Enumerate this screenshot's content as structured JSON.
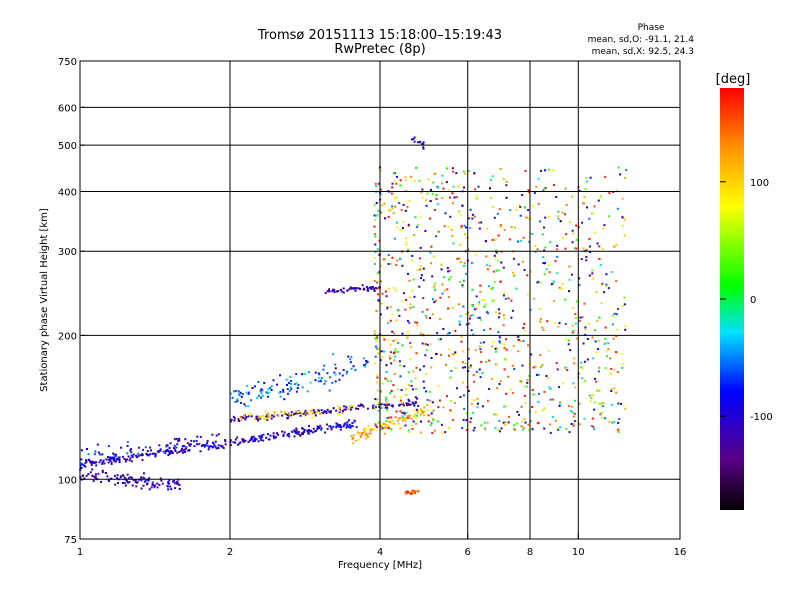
{
  "chart_data": {
    "type": "scatter",
    "title": "Tromsø 20151113 15:18:00–15:19:43",
    "subtitle": "RwPretec (8p)",
    "xlabel": "Frequency [MHz]",
    "ylabel": "Stationary phase Virtual Height [km]",
    "x_scale": "log",
    "y_scale": "log",
    "xlim": [
      1,
      16
    ],
    "ylim": [
      75,
      750
    ],
    "grid": true,
    "x_ticks": [
      1,
      2,
      4,
      6,
      8,
      10,
      16
    ],
    "y_ticks": [
      75,
      100,
      200,
      300,
      400,
      500,
      600,
      750
    ],
    "phase_stats": {
      "heading": "Phase",
      "o_line": "mean, sd,O: -91.1, 21.4",
      "x_line": "mean, sd,X:  92.5, 24.3"
    },
    "colorbar": {
      "label": "[deg]",
      "range": [
        -180,
        180
      ],
      "ticks": [
        100,
        0,
        -100
      ],
      "colormap": "rainbow (black→violet→blue→cyan→green→yellow→orange→red)"
    },
    "traces": [
      {
        "freq": [
          1.0,
          3.6
        ],
        "height": [
          107,
          131
        ],
        "phase": -105,
        "count": 300,
        "spread": 0.01
      },
      {
        "freq": [
          1.0,
          1.6
        ],
        "height": [
          102,
          97
        ],
        "phase": -115,
        "count": 110,
        "spread": 0.015
      },
      {
        "freq": [
          1.0,
          1.9
        ],
        "height": [
          112,
          122
        ],
        "phase": -95,
        "count": 70,
        "spread": 0.02
      },
      {
        "freq": [
          3.5,
          5.0
        ],
        "height": [
          122,
          140
        ],
        "phase": 110,
        "count": 90,
        "spread": 0.015
      },
      {
        "freq": [
          2.0,
          4.8
        ],
        "height": [
          133,
          145
        ],
        "phase": -120,
        "count": 140,
        "spread": 0.008
      },
      {
        "freq": [
          2.1,
          3.6
        ],
        "height": [
          135,
          141
        ],
        "phase": 100,
        "count": 50,
        "spread": 0.01
      },
      {
        "freq": [
          2.0,
          3.8
        ],
        "height": [
          145,
          175
        ],
        "phase": -60,
        "count": 120,
        "spread": 0.03
      },
      {
        "freq": [
          3.1,
          4.0
        ],
        "height": [
          247,
          252
        ],
        "phase": -115,
        "count": 50,
        "spread": 0.006
      },
      {
        "freq": [
          4.5,
          4.8
        ],
        "height": [
          94,
          94
        ],
        "phase": 160,
        "count": 22,
        "spread": 0.004
      },
      {
        "freq": [
          4.6,
          4.9
        ],
        "height": [
          520,
          500
        ],
        "phase": -110,
        "count": 12,
        "spread": 0.01
      }
    ],
    "cloud": {
      "freq": [
        3.9,
        12.5
      ],
      "height": [
        125,
        450
      ],
      "phase_mix": [
        -100,
        100,
        150,
        0
      ],
      "count": 1100
    }
  }
}
